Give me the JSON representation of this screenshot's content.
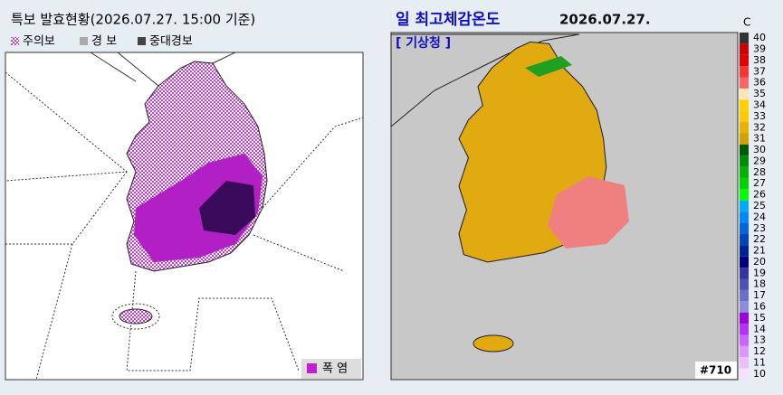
{
  "left": {
    "title": "특보 발효현황(2026.07.27. 15:00 기준)",
    "legend": [
      "주의보",
      "경 보",
      "중대경보"
    ],
    "hazard": "폭 염"
  },
  "right": {
    "title": "일 최고체감온도",
    "date": "2026.07.27.",
    "source": "[ 기상청 ]",
    "unit": "C",
    "badge": "#710",
    "scale": {
      "ticks": [
        40,
        39,
        38,
        37,
        36,
        35,
        34,
        33,
        32,
        31,
        30,
        29,
        28,
        27,
        26,
        25,
        24,
        23,
        22,
        21,
        20,
        19,
        18,
        17,
        16,
        15,
        14,
        13,
        12,
        11,
        10
      ],
      "colors": [
        "#333333",
        "#d20000",
        "#e60000",
        "#ff3232",
        "#ff6464",
        "#ffe6b4",
        "#ffd200",
        "#ffc800",
        "#e6b400",
        "#d2a000",
        "#005a00",
        "#008c00",
        "#00b400",
        "#00d200",
        "#00ff00",
        "#00aaff",
        "#0088ff",
        "#0066dd",
        "#0044bb",
        "#002299",
        "#000080",
        "#3232a0",
        "#5050b4",
        "#6e6ec8",
        "#8c8cdc",
        "#a000e0",
        "#b432ff",
        "#c864ff",
        "#dc96ff",
        "#ebbeff",
        "#f5e0ff"
      ]
    }
  }
}
